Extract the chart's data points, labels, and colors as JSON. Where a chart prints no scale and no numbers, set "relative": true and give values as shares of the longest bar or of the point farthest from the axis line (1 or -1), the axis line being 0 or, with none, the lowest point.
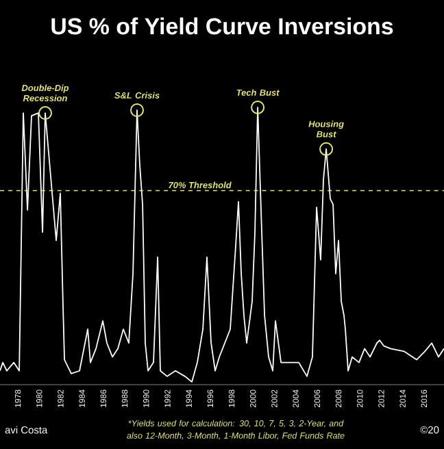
{
  "chart_data": {
    "type": "line",
    "title": "US % of Yield Curve Inversions",
    "relative": true,
    "xlim": [
      1976.33,
      2017.87
    ],
    "xticks": [
      1978,
      1980,
      1982,
      1984,
      1986,
      1988,
      1990,
      1992,
      1994,
      1996,
      1998,
      2000,
      2002,
      2004,
      2006,
      2008,
      2010,
      2012,
      2014,
      2016
    ],
    "series": [
      {
        "color": "#ffffff",
        "x": [
          1976.33,
          1976.59,
          1976.97,
          1977.62,
          1978.13,
          1978.51,
          1978.9,
          1979.28,
          1979.92,
          1980.31,
          1980.56,
          1981.21,
          1981.59,
          1981.97,
          1982.23,
          1982.36,
          1983.0,
          1983.77,
          1984.54,
          1984.79,
          1985.31,
          1985.95,
          1986.33,
          1986.85,
          1987.36,
          1987.87,
          1988.38,
          1988.77,
          1989.15,
          1989.41,
          1989.67,
          1989.92,
          1990.18,
          1990.69,
          1991.08,
          1991.33,
          1991.97,
          1992.74,
          1993.64,
          1994.28,
          1994.79,
          1995.31,
          1995.69,
          1996.08,
          1996.46,
          1996.85,
          1997.87,
          1998.38,
          1998.64,
          1998.9,
          1999.15,
          1999.41,
          1999.92,
          2000.18,
          2000.44,
          2000.82,
          2001.08,
          2001.46,
          2001.85,
          2002.1,
          2002.62,
          2003.26,
          2004.28,
          2005.05,
          2005.56,
          2005.95,
          2006.33,
          2006.59,
          2006.85,
          2007.23,
          2007.49,
          2007.74,
          2008.0,
          2008.26,
          2008.51,
          2008.64,
          2008.9,
          2009.28,
          2009.92,
          2010.44,
          2010.95,
          2011.59,
          2011.85,
          2012.23,
          2012.87,
          2014.15,
          2015.31,
          2016.08,
          2016.72,
          2017.36,
          2017.87
        ],
        "values": [
          0.05,
          0.08,
          0.05,
          0.08,
          0.05,
          0.98,
          0.63,
          0.97,
          0.98,
          0.55,
          0.98,
          0.69,
          0.52,
          0.69,
          0.28,
          0.09,
          0.04,
          0.05,
          0.2,
          0.08,
          0.13,
          0.23,
          0.15,
          0.1,
          0.13,
          0.2,
          0.15,
          0.4,
          0.99,
          0.79,
          0.65,
          0.15,
          0.05,
          0.08,
          0.46,
          0.05,
          0.03,
          0.05,
          0.03,
          0.01,
          0.08,
          0.2,
          0.46,
          0.15,
          0.05,
          0.1,
          0.2,
          0.5,
          0.66,
          0.4,
          0.25,
          0.15,
          0.3,
          0.55,
          1.0,
          0.55,
          0.25,
          0.1,
          0.05,
          0.23,
          0.08,
          0.08,
          0.08,
          0.03,
          0.1,
          0.64,
          0.45,
          0.74,
          0.85,
          0.67,
          0.65,
          0.4,
          0.52,
          0.3,
          0.25,
          0.2,
          0.05,
          0.1,
          0.08,
          0.13,
          0.1,
          0.15,
          0.16,
          0.14,
          0.13,
          0.12,
          0.09,
          0.12,
          0.15,
          0.1,
          0.13
        ]
      }
    ],
    "ref_lines": [
      {
        "axis": "y",
        "value": 0.7,
        "label": "70% Threshold",
        "color": "#e6e67a",
        "line_style": "dashed"
      }
    ],
    "annotations": [
      {
        "text": "Double-Dip Recession",
        "x": 1980.56,
        "y": 0.98
      },
      {
        "text": "S&L Crisis",
        "x": 1989.15,
        "y": 0.99
      },
      {
        "text": "Tech Bust",
        "x": 2000.44,
        "y": 1.0
      },
      {
        "text": "Housing Bust",
        "x": 2006.85,
        "y": 0.85
      },
      "*Yields used for calculation: 30, 10, 7, 5, 3, 2-Year, and also 12-Month, 3-Month, 1-Month Libor, Fed Funds Rate",
      "avi Costa",
      "©20"
    ]
  }
}
